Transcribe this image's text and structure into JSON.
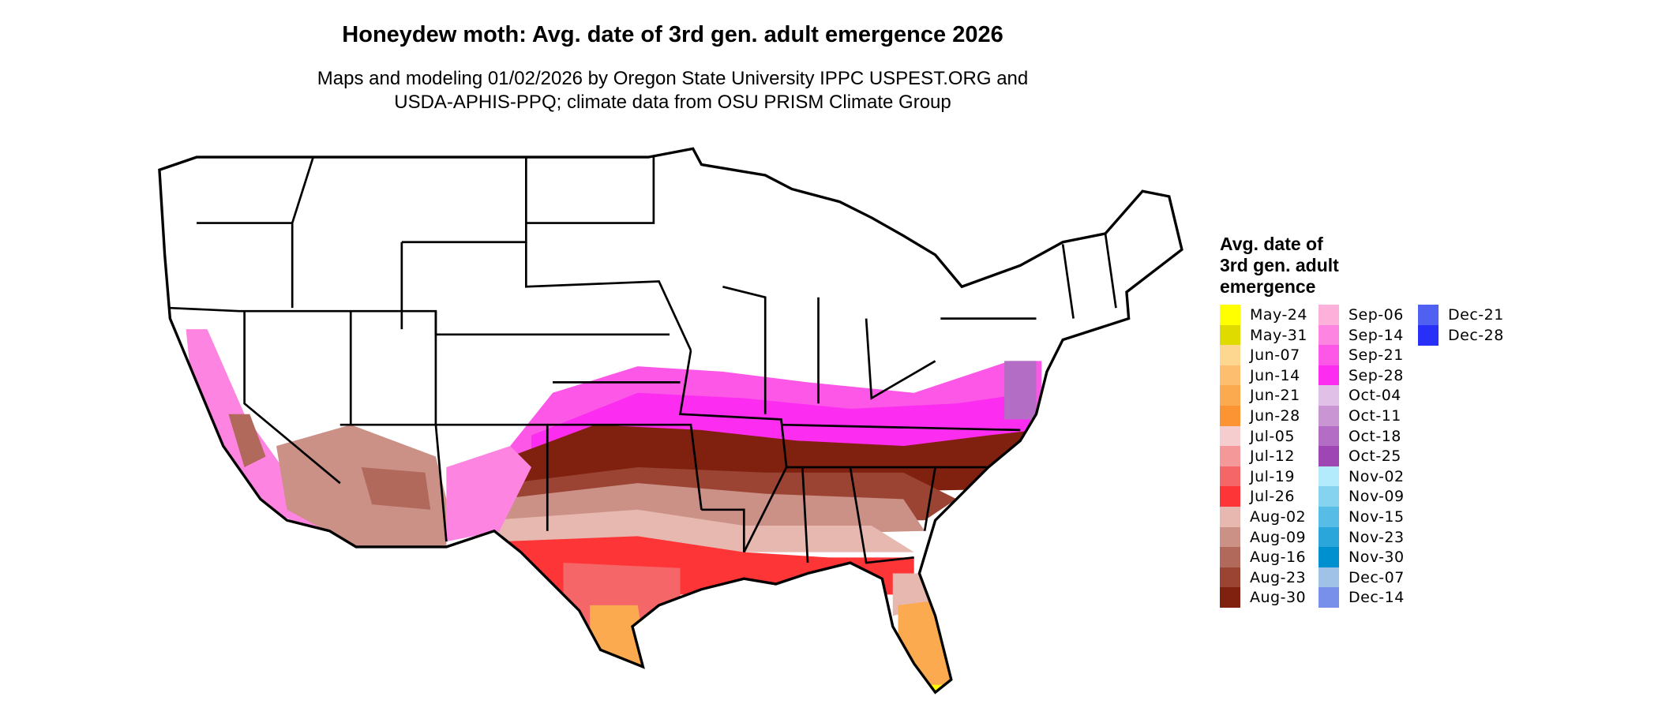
{
  "title": "Honeydew moth: Avg. date of 3rd gen. adult emergence 2026",
  "subtitle": [
    "Maps and modeling 01/02/2026 by Oregon State University IPPC USPEST.ORG and",
    "USDA-APHIS-PPQ; climate data from OSU PRISM Climate Group"
  ],
  "legend": {
    "title": [
      "Avg. date of",
      "3rd gen. adult",
      "emergence"
    ],
    "columns": [
      [
        {
          "label": "May-24",
          "color": "#FFFF00"
        },
        {
          "label": "May-31",
          "color": "#DFDB00"
        },
        {
          "label": "Jun-07",
          "color": "#FDD68F"
        },
        {
          "label": "Jun-14",
          "color": "#FDBF6F"
        },
        {
          "label": "Jun-21",
          "color": "#FCAA50"
        },
        {
          "label": "Jun-28",
          "color": "#FC9434"
        },
        {
          "label": "Jul-05",
          "color": "#F5CDCF"
        },
        {
          "label": "Jul-12",
          "color": "#F59899"
        },
        {
          "label": "Jul-19",
          "color": "#F56668"
        },
        {
          "label": "Jul-26",
          "color": "#FE3537"
        },
        {
          "label": "Aug-02",
          "color": "#E6B8B0"
        },
        {
          "label": "Aug-09",
          "color": "#CB9086"
        },
        {
          "label": "Aug-16",
          "color": "#B0695A"
        },
        {
          "label": "Aug-23",
          "color": "#9C4434"
        },
        {
          "label": "Aug-30",
          "color": "#80200F"
        }
      ],
      [
        {
          "label": "Sep-06",
          "color": "#FDB1DA"
        },
        {
          "label": "Sep-14",
          "color": "#FD84E0"
        },
        {
          "label": "Sep-21",
          "color": "#FC57E6"
        },
        {
          "label": "Sep-28",
          "color": "#FC2CF0"
        },
        {
          "label": "Oct-04",
          "color": "#E0C0E6"
        },
        {
          "label": "Oct-11",
          "color": "#C995D3"
        },
        {
          "label": "Oct-18",
          "color": "#B46DC4"
        },
        {
          "label": "Oct-25",
          "color": "#9E46B4"
        },
        {
          "label": "Nov-02",
          "color": "#B3EBFD"
        },
        {
          "label": "Nov-09",
          "color": "#86D3F0"
        },
        {
          "label": "Nov-15",
          "color": "#58BDE6"
        },
        {
          "label": "Nov-23",
          "color": "#2AA6DB"
        },
        {
          "label": "Nov-30",
          "color": "#0090D0"
        },
        {
          "label": "Dec-07",
          "color": "#A0C2E6"
        },
        {
          "label": "Dec-14",
          "color": "#7890EA"
        }
      ],
      [
        {
          "label": "Dec-21",
          "color": "#5060F0"
        },
        {
          "label": "Dec-28",
          "color": "#2830F8"
        }
      ]
    ]
  }
}
